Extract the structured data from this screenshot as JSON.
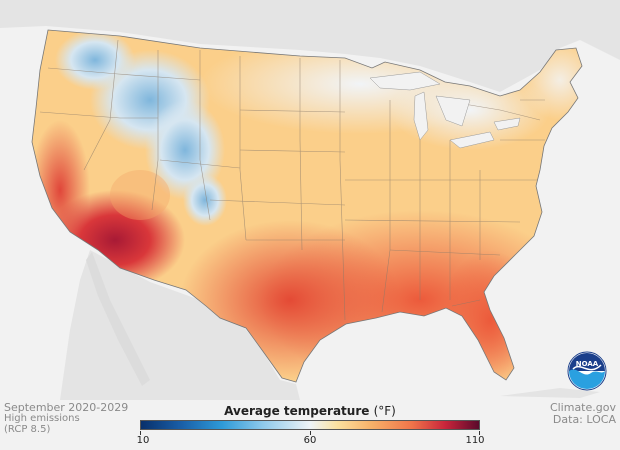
{
  "caption": {
    "period": "September 2020-2029",
    "scenario_line1": "High emissions",
    "scenario_line2": "(RCP 8.5)"
  },
  "legend": {
    "title": "Average temperature",
    "unit": "(°F)",
    "min": 10,
    "mid": 60,
    "max": 110,
    "tick_min": "10",
    "tick_mid": "60",
    "tick_max": "110"
  },
  "credits": {
    "source": "Climate.gov",
    "data": "Data: LOCA"
  },
  "logo": {
    "text": "NOAA"
  },
  "colors": {
    "land_background": "#e6e6e6",
    "water": "#f2f2f2",
    "cold": "#2e9ad8",
    "mild": "#eef4f8",
    "warm": "#f7b26a",
    "hot": "#e8503a",
    "very_hot": "#b5203a"
  }
}
